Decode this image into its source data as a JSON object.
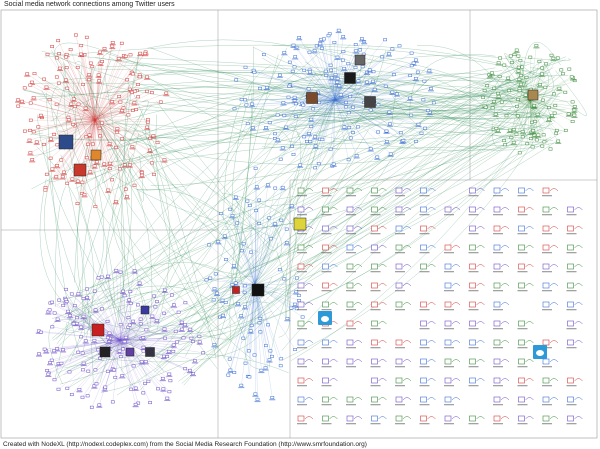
{
  "title": "Social media network connections among Twitter users",
  "footer": "Created with NodeXL (http://nodexl.codeplex.com) from the Social Media Research Foundation (http://www.smrfoundation.org)",
  "colors": {
    "edge": "#2e8b57",
    "cluster_red": "#d23c3c",
    "cluster_blue": "#3c6ed2",
    "cluster_green": "#3c8c3c",
    "cluster_purple": "#6e4fc8",
    "grid_line": "#999999"
  },
  "clusters": [
    {
      "name": "red-cluster",
      "color_key": "cluster_red"
    },
    {
      "name": "blue-cluster",
      "color_key": "cluster_blue"
    },
    {
      "name": "green-cluster",
      "color_key": "cluster_green"
    },
    {
      "name": "purple-cluster",
      "color_key": "cluster_purple"
    },
    {
      "name": "center-cluster",
      "color_key": "cluster_blue"
    }
  ],
  "icons": [
    "twitter-bird-icon",
    "twitter-bird-icon",
    "profile-photo-icon",
    "logo-icon"
  ]
}
